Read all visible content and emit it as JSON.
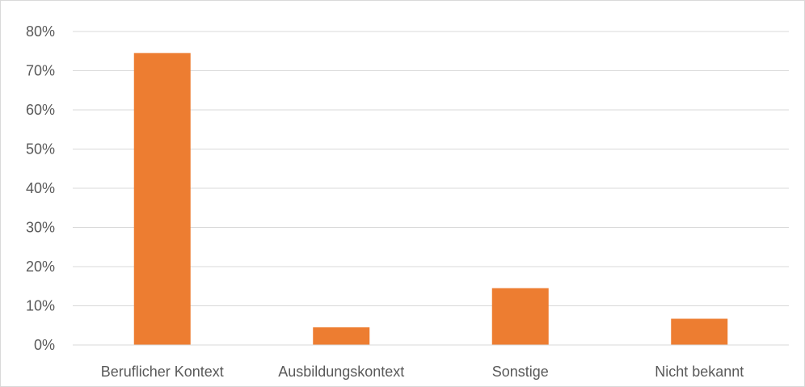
{
  "chart_data": {
    "type": "bar",
    "categories": [
      "Beruflicher Kontext",
      "Ausbildungskontext",
      "Sonstige",
      "Nicht bekannt"
    ],
    "values": [
      74.5,
      4.5,
      14.5,
      6.7
    ],
    "ylim": [
      0,
      80
    ],
    "y_ticks": [
      "0%",
      "10%",
      "20%",
      "30%",
      "40%",
      "50%",
      "60%",
      "70%",
      "80%"
    ],
    "y_tick_values": [
      0,
      10,
      20,
      30,
      40,
      50,
      60,
      70,
      80
    ],
    "bar_color": "#ED7D31",
    "grid": true,
    "legend": "none"
  }
}
